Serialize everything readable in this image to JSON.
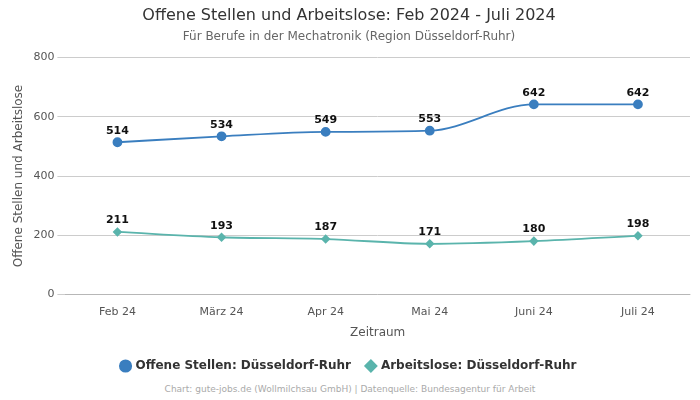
{
  "chart_data": {
    "type": "line",
    "title": "Offene Stellen und Arbeitslose: Feb 2024 - Juli 2024",
    "subtitle": "Für Berufe in der Mechatronik (Region Düsseldorf-Ruhr)",
    "x_label": "Zeitraum",
    "y_label": "Offene Stellen und Arbeitslose",
    "source": "Chart: gute-jobs.de (Wollmilchsau GmbH) | Datenquelle: Bundesagentur für Arbeit",
    "categories": [
      "Feb 24",
      "März 24",
      "Apr 24",
      "Mai 24",
      "Juni 24",
      "Juli 24"
    ],
    "series": [
      {
        "name": "Offene Stellen: Düsseldorf-Ruhr",
        "color": "#3a7ebf",
        "marker": "circle",
        "values": [
          514,
          534,
          549,
          553,
          642,
          642
        ]
      },
      {
        "name": "Arbeitslose: Düsseldorf-Ruhr",
        "color": "#5ab4ac",
        "marker": "diamond",
        "values": [
          211,
          193,
          187,
          171,
          180,
          198
        ]
      }
    ],
    "ylim": [
      0,
      800
    ],
    "yticks": [
      0,
      200,
      400,
      600,
      800
    ],
    "grid": "y",
    "legend": "bottom",
    "data_labels": true
  }
}
